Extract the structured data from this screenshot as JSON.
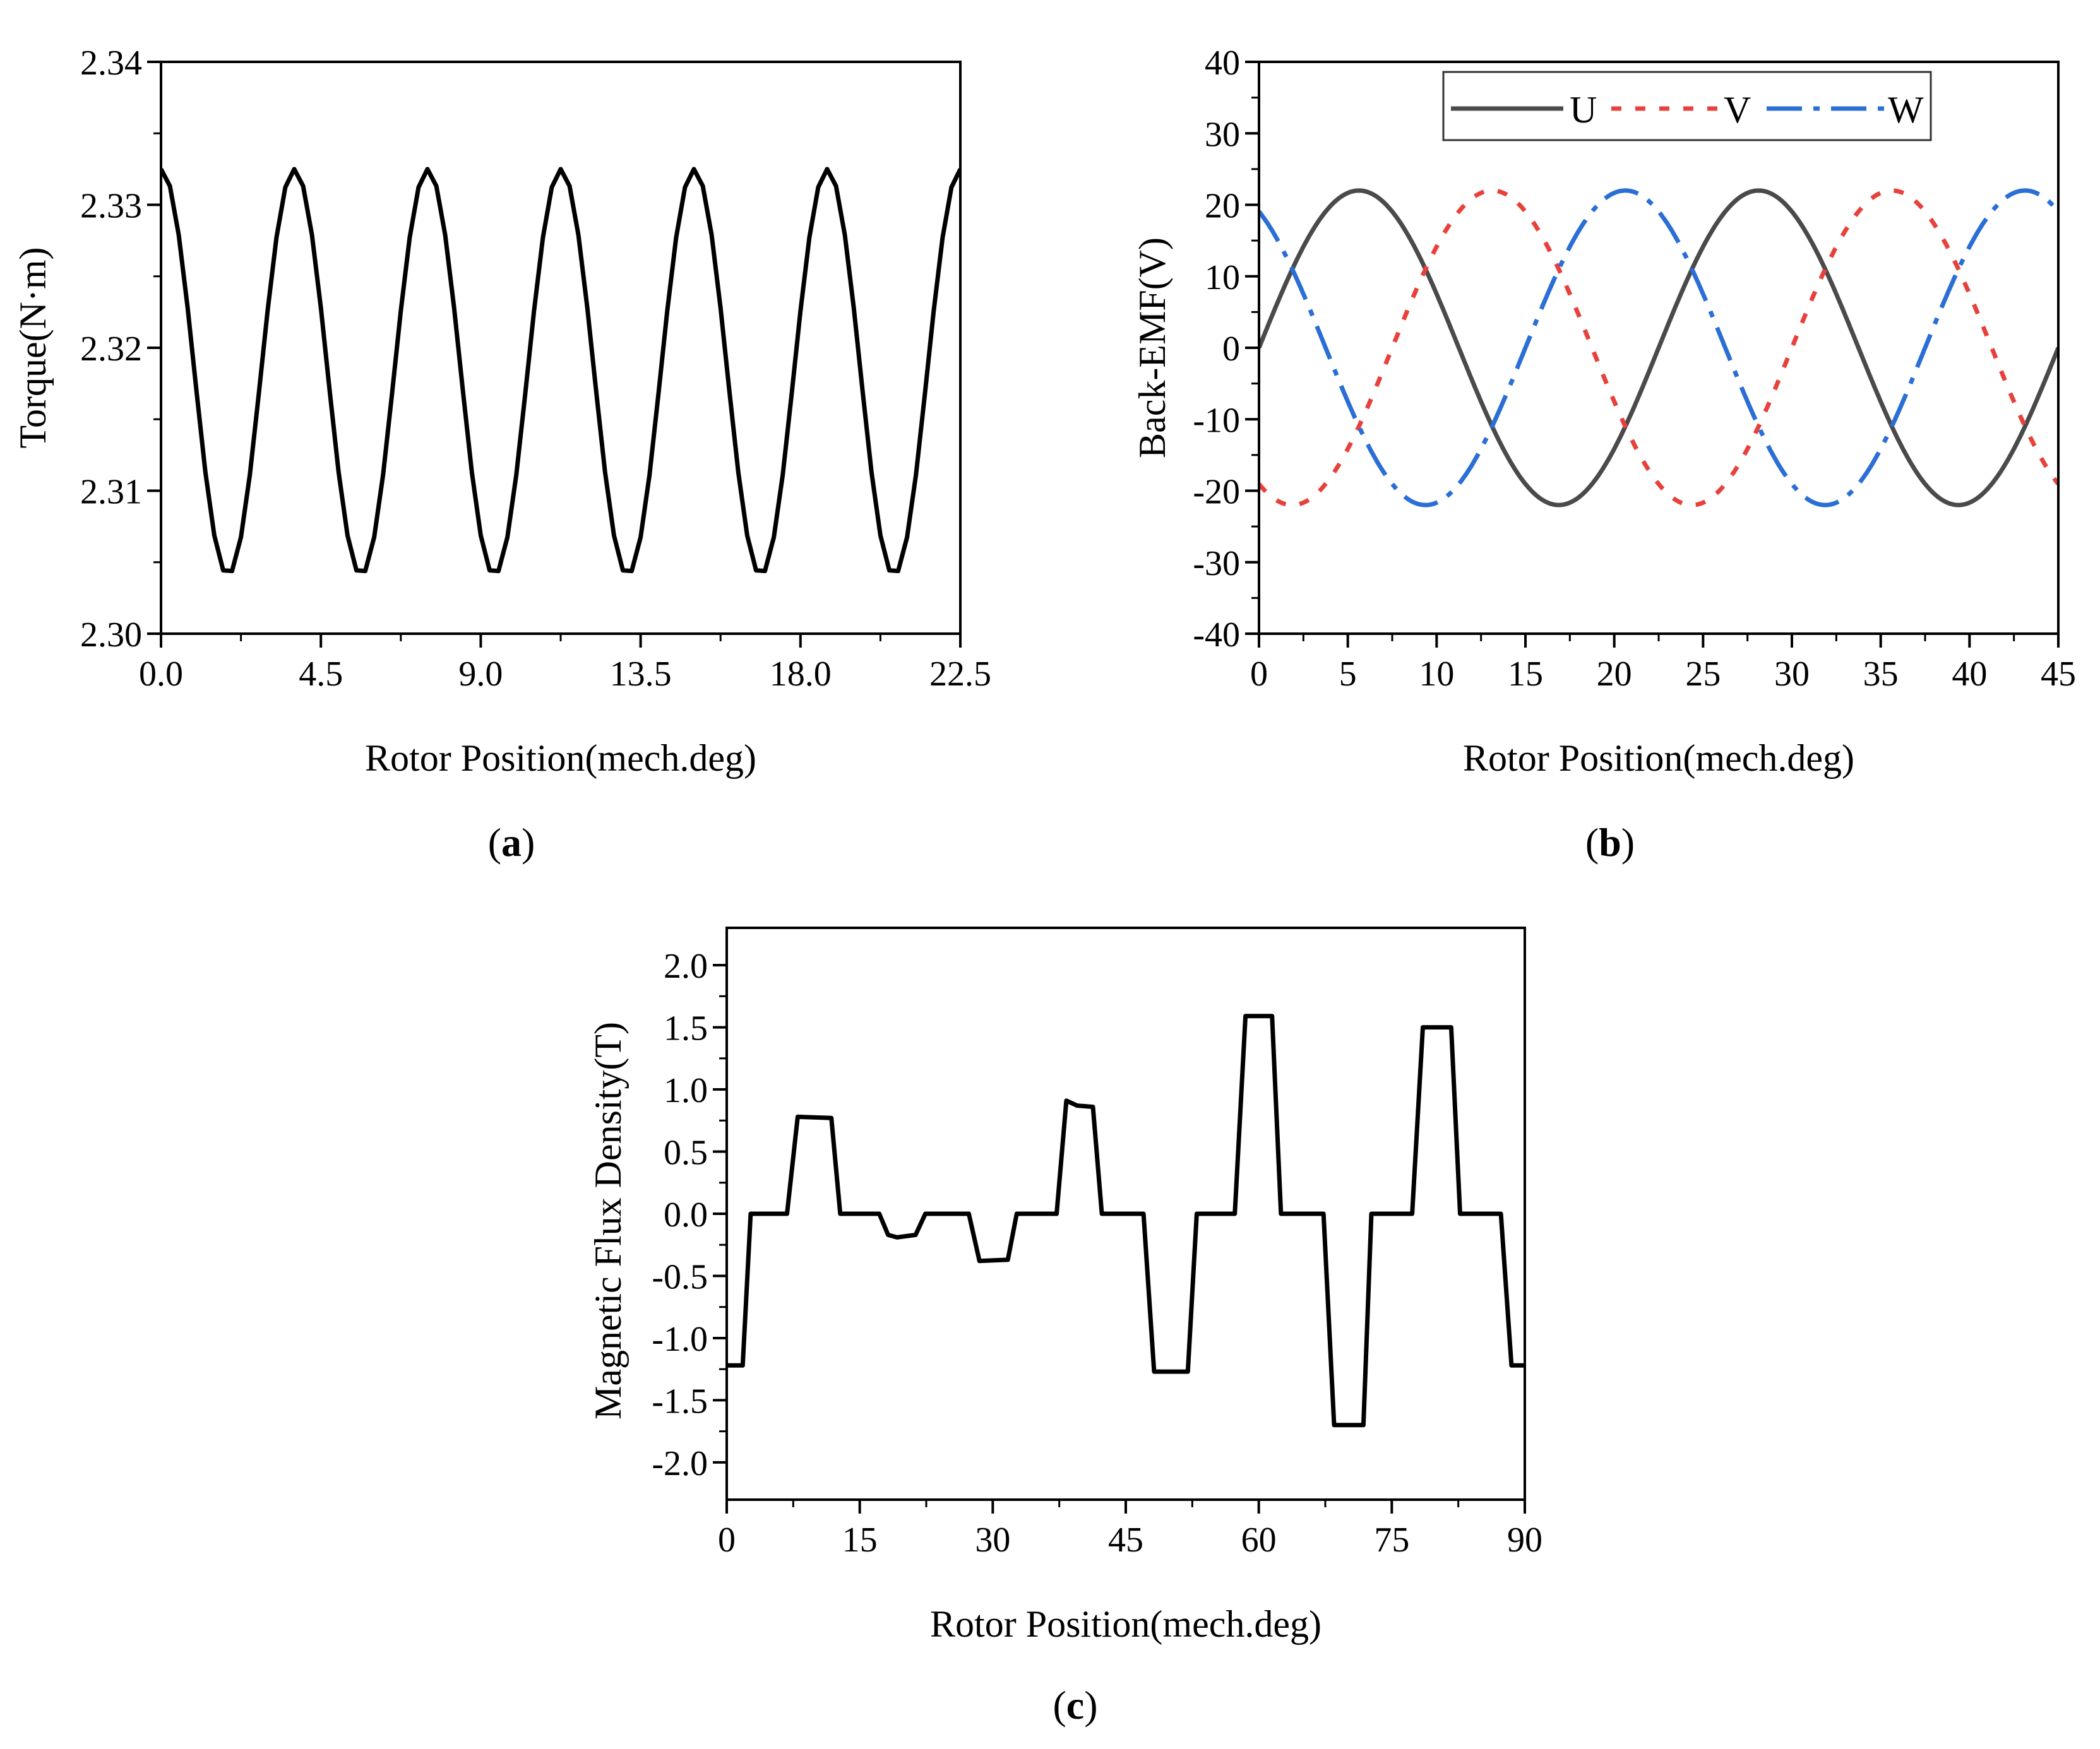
{
  "chart_data": [
    {
      "id": "a",
      "type": "line",
      "caption": "a",
      "xlabel": "Rotor Position(mech.deg)",
      "ylabel": "Torque(N·m)",
      "xlim": [
        0,
        22.5
      ],
      "ylim": [
        2.3,
        2.34
      ],
      "xticks": [
        0,
        4.5,
        9,
        13.5,
        18,
        22.5
      ],
      "xtick_labels": [
        "0.0",
        "4.5",
        "9.0",
        "13.5",
        "18.0",
        "22.5"
      ],
      "yticks": [
        2.3,
        2.31,
        2.32,
        2.33,
        2.34
      ],
      "ytick_labels": [
        "2.30",
        "2.31",
        "2.32",
        "2.33",
        "2.34"
      ],
      "series": [
        {
          "name": "Torque",
          "color": "#000000",
          "model": {
            "kind": "cosine",
            "mean": 2.3183,
            "amplitude": 0.0142,
            "period": 3.75,
            "phase_deg": 0.45,
            "x_start": 0,
            "x_end": 22.5,
            "samples": 91
          }
        }
      ]
    },
    {
      "id": "b",
      "type": "line",
      "caption": "b",
      "xlabel": "Rotor Position(mech.deg)",
      "ylabel": "Back-EMF(V)",
      "xlim": [
        0,
        45
      ],
      "ylim": [
        -40,
        40
      ],
      "xticks": [
        0,
        5,
        10,
        15,
        20,
        25,
        30,
        35,
        40,
        45
      ],
      "xtick_labels": [
        "0",
        "5",
        "10",
        "15",
        "20",
        "25",
        "30",
        "35",
        "40",
        "45"
      ],
      "yticks": [
        -40,
        -30,
        -20,
        -10,
        0,
        10,
        20,
        30,
        40
      ],
      "ytick_labels": [
        "-40",
        "-30",
        "-20",
        "-10",
        "0",
        "10",
        "20",
        "30",
        "40"
      ],
      "legend": {
        "position": "top-right",
        "entries": [
          "U",
          "V",
          "W"
        ]
      },
      "series": [
        {
          "name": "U",
          "color": "#4a4a4a",
          "dash": "solid",
          "amplitude": 22,
          "period": 22.5,
          "phase_deg": 0
        },
        {
          "name": "V",
          "color": "#e8413c",
          "dash": "dashed",
          "amplitude": 22,
          "period": 22.5,
          "phase_deg": -120
        },
        {
          "name": "W",
          "color": "#2a6ed6",
          "dash": "dashdot",
          "amplitude": 22,
          "period": 22.5,
          "phase_deg": 120
        }
      ]
    },
    {
      "id": "c",
      "type": "line",
      "caption": "c",
      "xlabel": "Rotor Position(mech.deg)",
      "ylabel": "Magnetic Flux Density(T)",
      "xlim": [
        0,
        90
      ],
      "ylim": [
        -2.3,
        2.3
      ],
      "xticks": [
        0,
        15,
        30,
        45,
        60,
        75,
        90
      ],
      "xtick_labels": [
        "0",
        "15",
        "30",
        "45",
        "60",
        "75",
        "90"
      ],
      "yticks": [
        -2.0,
        -1.5,
        -1.0,
        -0.5,
        0.0,
        0.5,
        1.0,
        1.5,
        2.0
      ],
      "ytick_labels": [
        "-2.0",
        "-1.5",
        "-1.0",
        "-0.5",
        "0.0",
        "0.5",
        "1.0",
        "1.5",
        "2.0"
      ],
      "series": [
        {
          "name": "Flux Density",
          "color": "#000000",
          "x": [
            0,
            1.8,
            2.7,
            6.8,
            8.0,
            11.8,
            12.8,
            17.2,
            18.2,
            19.2,
            21.3,
            22.4,
            27.3,
            28.5,
            31.7,
            32.7,
            37.2,
            38.3,
            39.5,
            41.3,
            42.3,
            47.0,
            48.2,
            52.0,
            53.0,
            57.3,
            58.5,
            61.5,
            62.5,
            67.3,
            68.5,
            71.8,
            72.7,
            77.3,
            78.5,
            81.7,
            82.7,
            87.3,
            88.5,
            90
          ],
          "y": [
            -1.22,
            -1.22,
            0.0,
            0.0,
            0.78,
            0.77,
            0.0,
            0.0,
            -0.17,
            -0.19,
            -0.17,
            0.0,
            0.0,
            -0.38,
            -0.37,
            0.0,
            0.0,
            0.91,
            0.87,
            0.86,
            0.0,
            0.0,
            -1.27,
            -1.27,
            0.0,
            0.0,
            1.59,
            1.59,
            0.0,
            0.0,
            -1.7,
            -1.7,
            0.0,
            0.0,
            1.5,
            1.5,
            0.0,
            0.0,
            -1.22,
            -1.22
          ]
        }
      ]
    }
  ]
}
